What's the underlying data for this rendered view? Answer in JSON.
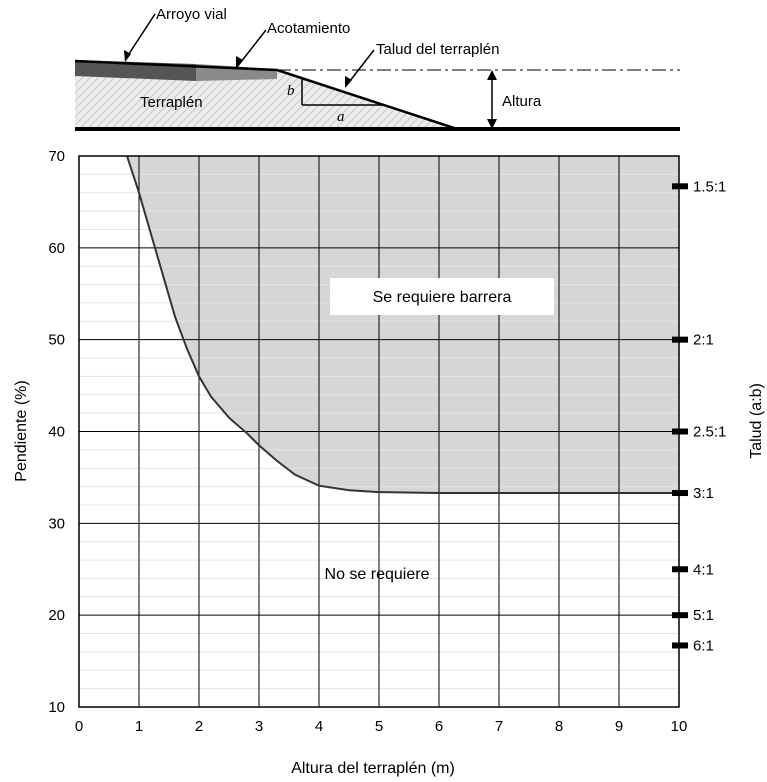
{
  "diagram": {
    "labels": {
      "roadway": "Arroyo vial",
      "shoulder": "Acotamiento",
      "slope": "Talud del terraplén",
      "embankment": "Terraplén",
      "height": "Altura",
      "b": "b",
      "a": "a"
    }
  },
  "chart_data": {
    "type": "area",
    "xlabel": "Altura del terraplén (m)",
    "ylabel": "Pendiente (%)",
    "y2label": "Talud (a:b)",
    "xlim": [
      0,
      10
    ],
    "ylim": [
      10,
      70
    ],
    "x_ticks": [
      0,
      1,
      2,
      3,
      4,
      5,
      6,
      7,
      8,
      9,
      10
    ],
    "y_ticks": [
      10,
      20,
      30,
      40,
      50,
      60,
      70
    ],
    "grid": true,
    "series": [
      {
        "x": [
          0.8,
          1.0,
          1.2,
          1.4,
          1.6,
          1.8,
          2.0,
          2.2,
          2.5,
          2.8,
          3.0,
          3.3,
          3.6,
          4.0,
          4.5,
          5.0,
          6.0,
          7.0,
          8.0,
          9.0,
          10.0
        ],
        "y": [
          70,
          66,
          61.5,
          57,
          52.5,
          49,
          46,
          43.8,
          41.5,
          39.8,
          38.5,
          36.8,
          35.3,
          34.1,
          33.6,
          33.4,
          33.3,
          33.3,
          33.3,
          33.3,
          33.3
        ]
      }
    ],
    "right_axis": [
      {
        "label": "1.5:1",
        "value": 66.7
      },
      {
        "label": "2:1",
        "value": 50
      },
      {
        "label": "2.5:1",
        "value": 40
      },
      {
        "label": "3:1",
        "value": 33.3
      },
      {
        "label": "4:1",
        "value": 25
      },
      {
        "label": "5:1",
        "value": 20
      },
      {
        "label": "6:1",
        "value": 16.7
      }
    ],
    "annotations": {
      "above": "Se requiere barrera",
      "below": "No se requiere"
    },
    "colors": {
      "region_fill": "#d6d6d6",
      "grid": "#000000",
      "minor_grid": "#e4e4e4",
      "curve": "#333333",
      "label_box": "#ffffff",
      "roadway": "#555555",
      "shoulder": "#8a8a8a",
      "fill_pattern": "#e8e8e8"
    }
  }
}
